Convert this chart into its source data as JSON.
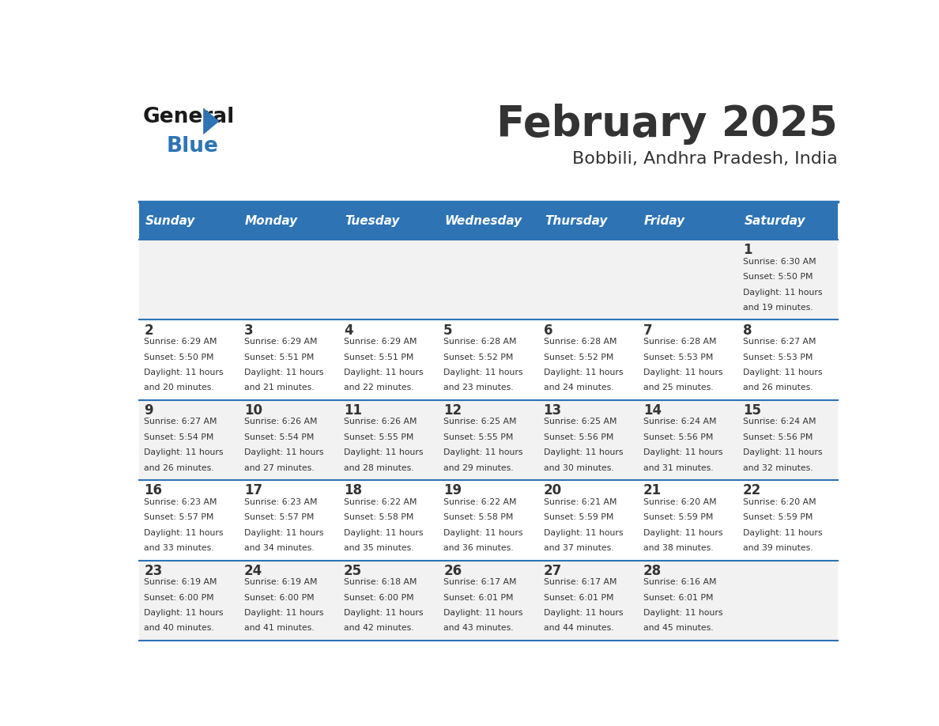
{
  "title": "February 2025",
  "subtitle": "Bobbili, Andhra Pradesh, India",
  "header_bg": "#2E74B5",
  "header_text_color": "#FFFFFF",
  "cell_bg_light": "#F2F2F2",
  "cell_bg_white": "#FFFFFF",
  "text_color": "#333333",
  "line_color": "#2E74B5",
  "days_of_week": [
    "Sunday",
    "Monday",
    "Tuesday",
    "Wednesday",
    "Thursday",
    "Friday",
    "Saturday"
  ],
  "calendar_data": [
    [
      null,
      null,
      null,
      null,
      null,
      null,
      {
        "day": "1",
        "sunrise": "6:30 AM",
        "sunset": "5:50 PM",
        "daylight1": "11 hours",
        "daylight2": "and 19 minutes."
      }
    ],
    [
      {
        "day": "2",
        "sunrise": "6:29 AM",
        "sunset": "5:50 PM",
        "daylight1": "11 hours",
        "daylight2": "and 20 minutes."
      },
      {
        "day": "3",
        "sunrise": "6:29 AM",
        "sunset": "5:51 PM",
        "daylight1": "11 hours",
        "daylight2": "and 21 minutes."
      },
      {
        "day": "4",
        "sunrise": "6:29 AM",
        "sunset": "5:51 PM",
        "daylight1": "11 hours",
        "daylight2": "and 22 minutes."
      },
      {
        "day": "5",
        "sunrise": "6:28 AM",
        "sunset": "5:52 PM",
        "daylight1": "11 hours",
        "daylight2": "and 23 minutes."
      },
      {
        "day": "6",
        "sunrise": "6:28 AM",
        "sunset": "5:52 PM",
        "daylight1": "11 hours",
        "daylight2": "and 24 minutes."
      },
      {
        "day": "7",
        "sunrise": "6:28 AM",
        "sunset": "5:53 PM",
        "daylight1": "11 hours",
        "daylight2": "and 25 minutes."
      },
      {
        "day": "8",
        "sunrise": "6:27 AM",
        "sunset": "5:53 PM",
        "daylight1": "11 hours",
        "daylight2": "and 26 minutes."
      }
    ],
    [
      {
        "day": "9",
        "sunrise": "6:27 AM",
        "sunset": "5:54 PM",
        "daylight1": "11 hours",
        "daylight2": "and 26 minutes."
      },
      {
        "day": "10",
        "sunrise": "6:26 AM",
        "sunset": "5:54 PM",
        "daylight1": "11 hours",
        "daylight2": "and 27 minutes."
      },
      {
        "day": "11",
        "sunrise": "6:26 AM",
        "sunset": "5:55 PM",
        "daylight1": "11 hours",
        "daylight2": "and 28 minutes."
      },
      {
        "day": "12",
        "sunrise": "6:25 AM",
        "sunset": "5:55 PM",
        "daylight1": "11 hours",
        "daylight2": "and 29 minutes."
      },
      {
        "day": "13",
        "sunrise": "6:25 AM",
        "sunset": "5:56 PM",
        "daylight1": "11 hours",
        "daylight2": "and 30 minutes."
      },
      {
        "day": "14",
        "sunrise": "6:24 AM",
        "sunset": "5:56 PM",
        "daylight1": "11 hours",
        "daylight2": "and 31 minutes."
      },
      {
        "day": "15",
        "sunrise": "6:24 AM",
        "sunset": "5:56 PM",
        "daylight1": "11 hours",
        "daylight2": "and 32 minutes."
      }
    ],
    [
      {
        "day": "16",
        "sunrise": "6:23 AM",
        "sunset": "5:57 PM",
        "daylight1": "11 hours",
        "daylight2": "and 33 minutes."
      },
      {
        "day": "17",
        "sunrise": "6:23 AM",
        "sunset": "5:57 PM",
        "daylight1": "11 hours",
        "daylight2": "and 34 minutes."
      },
      {
        "day": "18",
        "sunrise": "6:22 AM",
        "sunset": "5:58 PM",
        "daylight1": "11 hours",
        "daylight2": "and 35 minutes."
      },
      {
        "day": "19",
        "sunrise": "6:22 AM",
        "sunset": "5:58 PM",
        "daylight1": "11 hours",
        "daylight2": "and 36 minutes."
      },
      {
        "day": "20",
        "sunrise": "6:21 AM",
        "sunset": "5:59 PM",
        "daylight1": "11 hours",
        "daylight2": "and 37 minutes."
      },
      {
        "day": "21",
        "sunrise": "6:20 AM",
        "sunset": "5:59 PM",
        "daylight1": "11 hours",
        "daylight2": "and 38 minutes."
      },
      {
        "day": "22",
        "sunrise": "6:20 AM",
        "sunset": "5:59 PM",
        "daylight1": "11 hours",
        "daylight2": "and 39 minutes."
      }
    ],
    [
      {
        "day": "23",
        "sunrise": "6:19 AM",
        "sunset": "6:00 PM",
        "daylight1": "11 hours",
        "daylight2": "and 40 minutes."
      },
      {
        "day": "24",
        "sunrise": "6:19 AM",
        "sunset": "6:00 PM",
        "daylight1": "11 hours",
        "daylight2": "and 41 minutes."
      },
      {
        "day": "25",
        "sunrise": "6:18 AM",
        "sunset": "6:00 PM",
        "daylight1": "11 hours",
        "daylight2": "and 42 minutes."
      },
      {
        "day": "26",
        "sunrise": "6:17 AM",
        "sunset": "6:01 PM",
        "daylight1": "11 hours",
        "daylight2": "and 43 minutes."
      },
      {
        "day": "27",
        "sunrise": "6:17 AM",
        "sunset": "6:01 PM",
        "daylight1": "11 hours",
        "daylight2": "and 44 minutes."
      },
      {
        "day": "28",
        "sunrise": "6:16 AM",
        "sunset": "6:01 PM",
        "daylight1": "11 hours",
        "daylight2": "and 45 minutes."
      },
      null
    ]
  ]
}
